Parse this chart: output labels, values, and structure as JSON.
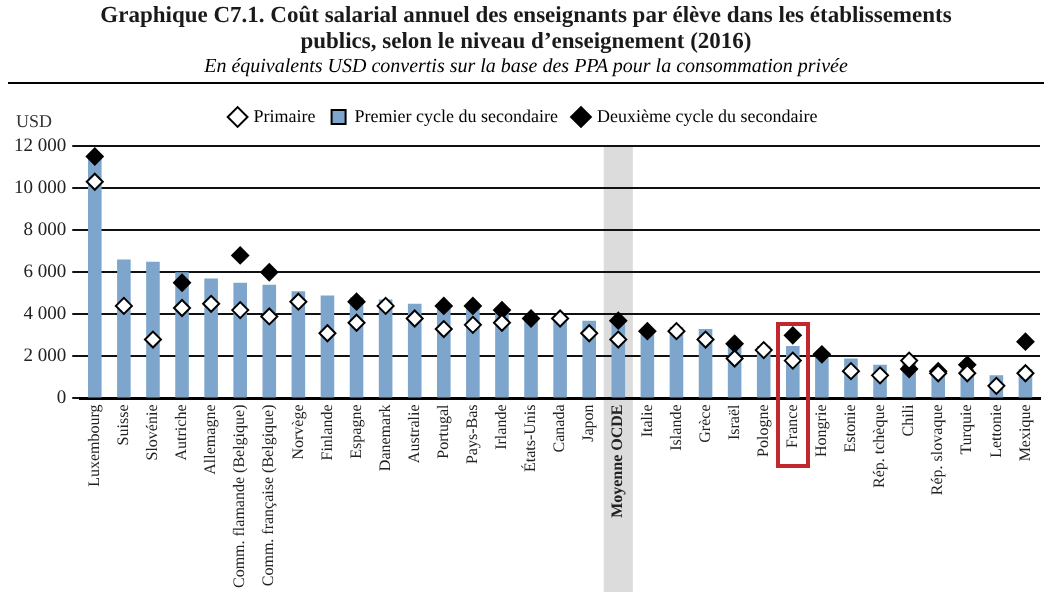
{
  "chart_data": {
    "type": "bar",
    "title": "Graphique C7.1.  Coût salarial annuel des enseignants par élève dans les établissements publics, selon le niveau d’enseignement (2016)",
    "subtitle": "En équivalents USD convertis sur la base des PPA pour la consommation privée",
    "ylabel": "USD",
    "categories": [
      "Luxembourg",
      "Suisse",
      "Slovénie",
      "Autriche",
      "Allemagne",
      "Comm. flamande (Belgique)",
      "Comm. française (Belgique)",
      "Norvège",
      "Finlande",
      "Espagne",
      "Danemark",
      "Australie",
      "Portugal",
      "Pays-Bas",
      "Irlande",
      "États-Unis",
      "Canada",
      "Japon",
      "Moyenne OCDE",
      "Italie",
      "Islande",
      "Grèce",
      "Israël",
      "Pologne",
      "France",
      "Hongrie",
      "Estonie",
      "Rép. tchèque",
      "Chili",
      "Rép. slovaque",
      "Turquie",
      "Lettonie",
      "Mexique"
    ],
    "series": [
      {
        "name": "Primaire",
        "type": "scatter",
        "marker": "diamond",
        "color": "#ffffff",
        "values": [
          10300,
          4400,
          2800,
          4300,
          4500,
          4200,
          3900,
          4600,
          3100,
          3600,
          4400,
          3800,
          3300,
          3500,
          3600,
          null,
          3800,
          3100,
          2800,
          null,
          3200,
          2800,
          1900,
          2300,
          1800,
          null,
          1300,
          1100,
          1800,
          1200,
          1200,
          600,
          1200
        ]
      },
      {
        "name": "Premier cycle du secondaire",
        "color": "#7ea6cc",
        "values": [
          11500,
          6600,
          6500,
          6000,
          5700,
          5500,
          5400,
          5100,
          4900,
          4800,
          4700,
          4500,
          4400,
          4500,
          4200,
          3900,
          3900,
          3700,
          3600,
          3300,
          3400,
          3300,
          2600,
          2500,
          2500,
          2200,
          1900,
          1600,
          1900,
          1400,
          1400,
          1100,
          1400
        ]
      },
      {
        "name": "Deuxième cycle du secondaire",
        "type": "scatter",
        "marker": "diamond",
        "color": "#000000",
        "values": [
          11500,
          null,
          null,
          5500,
          null,
          6800,
          6000,
          null,
          null,
          4600,
          null,
          null,
          4400,
          4400,
          4200,
          3800,
          null,
          null,
          3700,
          3200,
          null,
          null,
          2600,
          null,
          3000,
          2100,
          null,
          null,
          1400,
          1300,
          1600,
          null,
          2700
        ]
      }
    ],
    "ylim": [
      0,
      12000
    ],
    "yticks": [
      {
        "value": 0,
        "label": "0"
      },
      {
        "value": 2000,
        "label": "2 000"
      },
      {
        "value": 4000,
        "label": "4 000"
      },
      {
        "value": 6000,
        "label": "6 000"
      },
      {
        "value": 8000,
        "label": "8 000"
      },
      {
        "value": 10000,
        "label": "10 000"
      },
      {
        "value": 12000,
        "label": "12 000"
      }
    ],
    "bands": [
      {
        "axis": "x",
        "from": "Moyenne OCDE",
        "to": "Moyenne OCDE",
        "color": "#dcdcdc"
      }
    ],
    "grid": "y",
    "legend": "top"
  }
}
